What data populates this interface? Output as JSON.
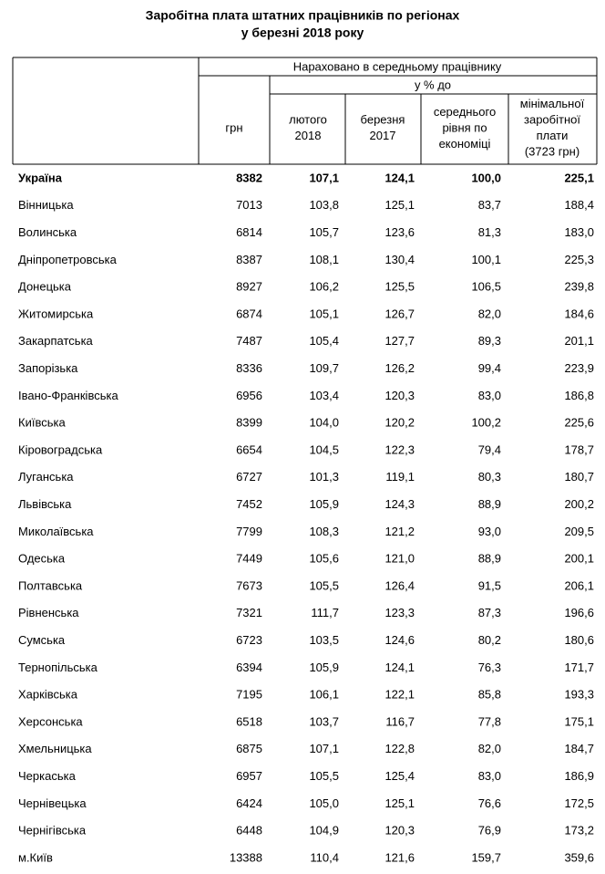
{
  "title": [
    "Заробітна плата штатних працівників по регіонах",
    "у березні 2018 року"
  ],
  "table": {
    "header": {
      "group": "Нараховано в середньому працівнику",
      "subgroup": "у % до",
      "columns": [
        [
          "грн"
        ],
        [
          "лютого",
          "2018"
        ],
        [
          "березня",
          "2017"
        ],
        [
          "середнього",
          "рівня по",
          "економіці"
        ],
        [
          "мінімальної",
          "заробітної",
          "плати",
          "(3723 грн)"
        ]
      ]
    },
    "rows": [
      [
        "Україна",
        "8382",
        "107,1",
        "124,1",
        "100,0",
        "225,1"
      ],
      [
        "Вінницька",
        "7013",
        "103,8",
        "125,1",
        "83,7",
        "188,4"
      ],
      [
        "Волинська",
        "6814",
        "105,7",
        "123,6",
        "81,3",
        "183,0"
      ],
      [
        "Дніпропетровська",
        "8387",
        "108,1",
        "130,4",
        "100,1",
        "225,3"
      ],
      [
        "Донецька",
        "8927",
        "106,2",
        "125,5",
        "106,5",
        "239,8"
      ],
      [
        "Житомирська",
        "6874",
        "105,1",
        "126,7",
        "82,0",
        "184,6"
      ],
      [
        "Закарпатська",
        "7487",
        "105,4",
        "127,7",
        "89,3",
        "201,1"
      ],
      [
        "Запорізька",
        "8336",
        "109,7",
        "126,2",
        "99,4",
        "223,9"
      ],
      [
        "Івано-Франківська",
        "6956",
        "103,4",
        "120,3",
        "83,0",
        "186,8"
      ],
      [
        "Київська",
        "8399",
        "104,0",
        "120,2",
        "100,2",
        "225,6"
      ],
      [
        "Кіровоградська",
        "6654",
        "104,5",
        "122,3",
        "79,4",
        "178,7"
      ],
      [
        "Луганська",
        "6727",
        "101,3",
        "119,1",
        "80,3",
        "180,7"
      ],
      [
        "Львівська",
        "7452",
        "105,9",
        "124,3",
        "88,9",
        "200,2"
      ],
      [
        "Миколаївська",
        "7799",
        "108,3",
        "121,2",
        "93,0",
        "209,5"
      ],
      [
        "Одеська",
        "7449",
        "105,6",
        "121,0",
        "88,9",
        "200,1"
      ],
      [
        "Полтавська",
        "7673",
        "105,5",
        "126,4",
        "91,5",
        "206,1"
      ],
      [
        "Рівненська",
        "7321",
        "111,7",
        "123,3",
        "87,3",
        "196,6"
      ],
      [
        "Сумська",
        "6723",
        "103,5",
        "124,6",
        "80,2",
        "180,6"
      ],
      [
        "Тернопільська",
        "6394",
        "105,9",
        "124,1",
        "76,3",
        "171,7"
      ],
      [
        "Харківська",
        "7195",
        "106,1",
        "122,1",
        "85,8",
        "193,3"
      ],
      [
        "Херсонська",
        "6518",
        "103,7",
        "116,7",
        "77,8",
        "175,1"
      ],
      [
        "Хмельницька",
        "6875",
        "107,1",
        "122,8",
        "82,0",
        "184,7"
      ],
      [
        "Черкаська",
        "6957",
        "105,5",
        "125,4",
        "83,0",
        "186,9"
      ],
      [
        "Чернівецька",
        "6424",
        "105,0",
        "125,1",
        "76,6",
        "172,5"
      ],
      [
        "Чернігівська",
        "6448",
        "104,9",
        "120,3",
        "76,9",
        "173,2"
      ],
      [
        "м.Київ",
        "13388",
        "110,4",
        "121,6",
        "159,7",
        "359,6"
      ]
    ]
  }
}
